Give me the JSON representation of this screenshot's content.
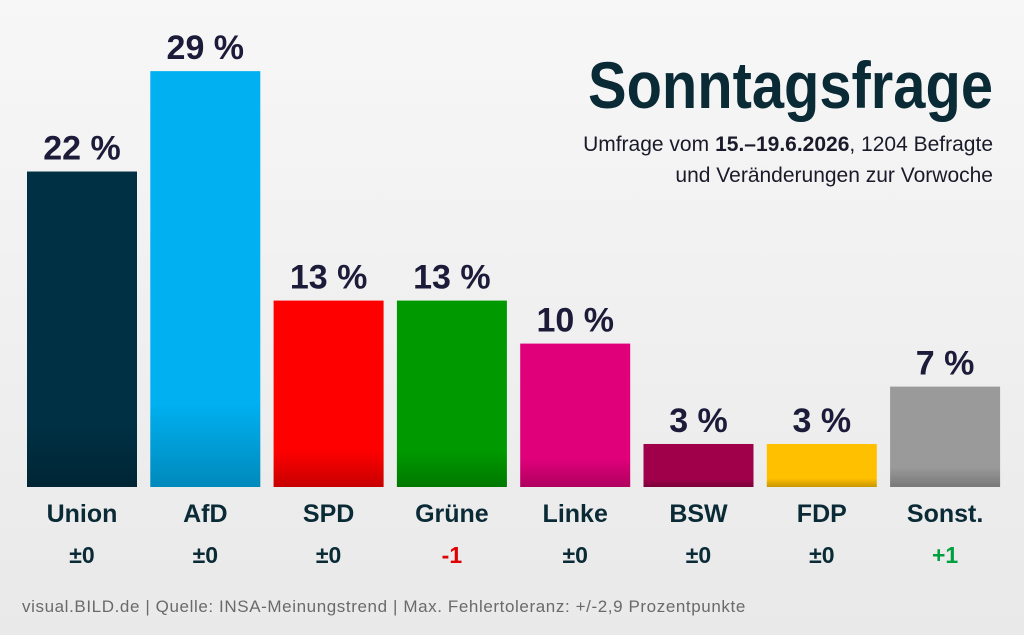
{
  "chart_data": {
    "type": "bar",
    "title": "Sonntagsfrage",
    "subtitle": [
      "Umfrage vom",
      "15.–19.6.2026",
      ", 1204 Befragte",
      "und Veränderungen zur Vorwoche"
    ],
    "categories": [
      "Union",
      "AfD",
      "SPD",
      "Grüne",
      "Linke",
      "BSW",
      "FDP",
      "Sonst."
    ],
    "values": [
      22,
      29,
      13,
      13,
      10,
      3,
      3,
      7
    ],
    "value_labels": [
      "22 %",
      "29 %",
      "13 %",
      "13 %",
      "10 %",
      "3 %",
      "3 %",
      "7 %"
    ],
    "colors": [
      "#003044",
      "#00b0f0",
      "#ff0000",
      "#009a00",
      "#e0007a",
      "#a0004a",
      "#ffc000",
      "#9a9a9a"
    ],
    "changes": [
      "±0",
      "±0",
      "±0",
      "-1",
      "±0",
      "±0",
      "±0",
      "+1"
    ],
    "change_colors": [
      "#0a2a36",
      "#0a2a36",
      "#0a2a36",
      "#e00000",
      "#0a2a36",
      "#0a2a36",
      "#0a2a36",
      "#00a040"
    ],
    "footer": "visual.BILD.de | Quelle: INSA-Meinungstrend | Max. Fehlertoleranz: +/-2,9 Prozentpunkte"
  }
}
